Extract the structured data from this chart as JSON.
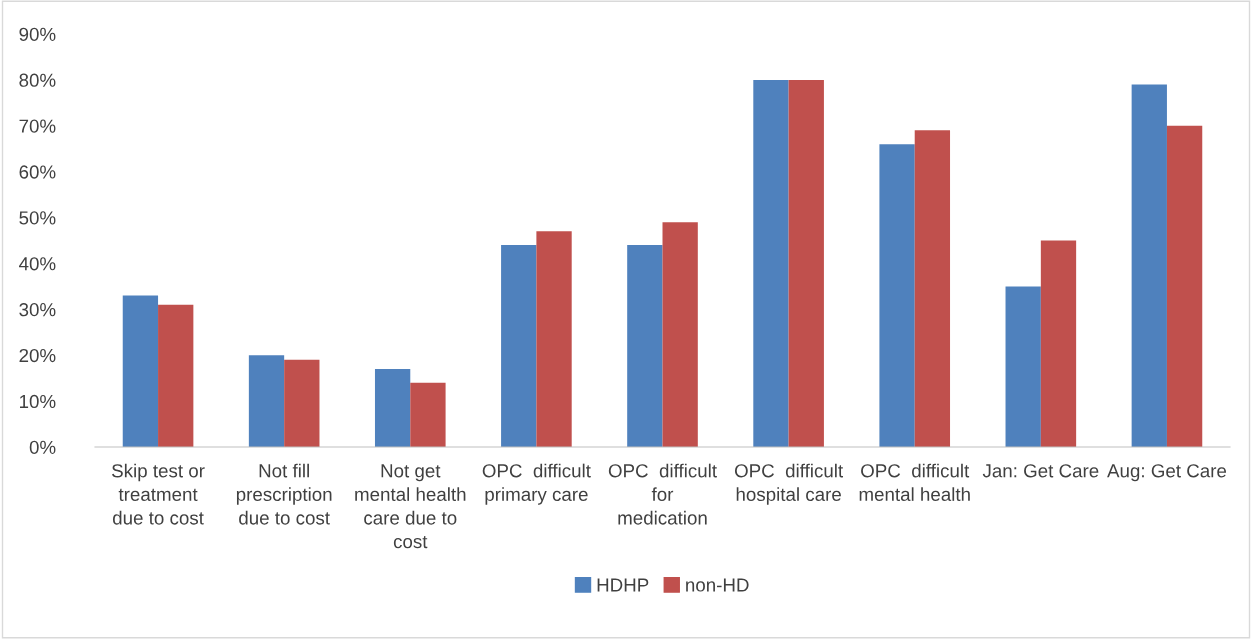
{
  "chart_data": {
    "type": "bar",
    "categories": [
      "Skip test or\ntreatment\ndue to cost",
      "Not fill\nprescription\ndue to cost",
      "Not get\nmental health\ncare due to\ncost",
      "OPC  difficult\nprimary care",
      "OPC  difficult\nfor\nmedication",
      "OPC  difficult\nhospital care",
      "OPC  difficult\nmental health",
      "Jan: Get Care",
      "Aug: Get Care"
    ],
    "series": [
      {
        "name": "HDHP",
        "color": "#4f81bd",
        "values": [
          33,
          20,
          17,
          44,
          44,
          80,
          66,
          35,
          79
        ]
      },
      {
        "name": "non-HD",
        "color": "#c0504d",
        "values": [
          31,
          19,
          14,
          47,
          49,
          80,
          69,
          45,
          70
        ]
      }
    ],
    "ylim": [
      0,
      90
    ],
    "yticks": [
      {
        "value": 0,
        "label": "0%"
      },
      {
        "value": 10,
        "label": "10%"
      },
      {
        "value": 20,
        "label": "20%"
      },
      {
        "value": 30,
        "label": "30%"
      },
      {
        "value": 40,
        "label": "40%"
      },
      {
        "value": 50,
        "label": "50%"
      },
      {
        "value": 60,
        "label": "60%"
      },
      {
        "value": 70,
        "label": "70%"
      },
      {
        "value": 80,
        "label": "80%"
      },
      {
        "value": 90,
        "label": "90%"
      }
    ],
    "grid": false,
    "legend": "bottom"
  }
}
